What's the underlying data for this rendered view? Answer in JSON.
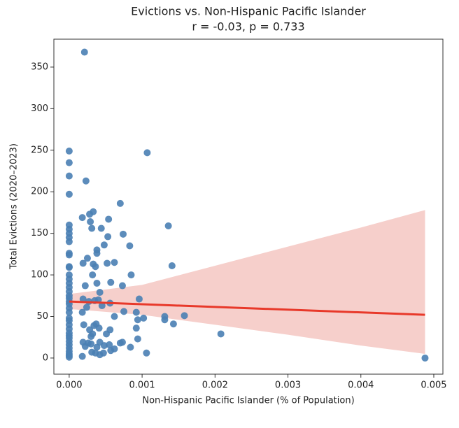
{
  "chart_data": {
    "type": "scatter",
    "title": "Evictions vs. Non-Hispanic Pacific Islander",
    "subtitle": "r = -0.03, p = 0.733",
    "x_label": "Non-Hispanic Pacific Islander (% of Population)",
    "y_label": "Total Evictions (2020–2023)",
    "xlim": [
      -0.00021,
      0.005125
    ],
    "ylim": [
      -19.4,
      383.6
    ],
    "xticks": [
      {
        "value": 0,
        "label": "0.000"
      },
      {
        "value": 0.001,
        "label": "0.001"
      },
      {
        "value": 0.002,
        "label": "0.002"
      },
      {
        "value": 0.003,
        "label": "0.003"
      },
      {
        "value": 0.004,
        "label": "0.004"
      },
      {
        "value": 0.005,
        "label": "0.005"
      }
    ],
    "yticks": [
      0,
      50,
      100,
      150,
      200,
      250,
      300,
      350
    ],
    "point_color": "#4a7fb4",
    "line_color": "#e8392a",
    "band_color": "#f6cfcb",
    "x": [
      0,
      0,
      0,
      0,
      0,
      0,
      0,
      0,
      0,
      0,
      0,
      0,
      0,
      0,
      0,
      0,
      0,
      0,
      0,
      0,
      0,
      0,
      0,
      0,
      0,
      0,
      0,
      0,
      0,
      0,
      0,
      0,
      0,
      0,
      0,
      0,
      0,
      0,
      0.00021,
      0.00023,
      0.00033,
      0.00028,
      0.00018,
      0.00054,
      0.00029,
      0.0007,
      0.00107,
      0.00136,
      0.00031,
      0.00044,
      0.00074,
      0.00053,
      0.00048,
      0.00083,
      0.00038,
      0.00038,
      0.00025,
      0.00019,
      0.00052,
      0.00062,
      0.00033,
      0.00036,
      0.00141,
      0.00032,
      0.00085,
      0.00022,
      0.00038,
      0.00057,
      0.00073,
      0.00042,
      0.00019,
      0.0004,
      0.00027,
      0.00035,
      0.00096,
      0.00056,
      0.00045,
      0.00024,
      0.00075,
      0.00018,
      0.00092,
      0.00062,
      0.00131,
      0.00158,
      0.00102,
      0.00094,
      0.00131,
      0.00143,
      0.0002,
      0.00037,
      0.00041,
      0.00034,
      0.00028,
      0.00056,
      0.00092,
      0.00208,
      0.00032,
      0.00051,
      0.0003,
      0.00094,
      0.00019,
      0.00026,
      0.00042,
      0.0007,
      0.00073,
      0.0003,
      0.00055,
      0.00048,
      0.00022,
      0.00038,
      0.00084,
      0.00062,
      0.00057,
      0.00031,
      0.00036,
      0.00047,
      0.00106,
      0.00042,
      0.00018,
      0.00488
    ],
    "values": [
      249,
      235,
      219,
      197,
      160,
      155,
      150,
      145,
      140,
      126,
      124,
      110,
      109,
      100,
      95,
      90,
      85,
      80,
      75,
      72,
      68,
      65,
      60,
      55,
      48,
      45,
      40,
      35,
      30,
      27,
      24,
      20,
      16,
      12,
      8,
      5,
      3,
      1,
      368,
      213,
      176,
      173,
      169,
      167,
      164,
      186,
      247,
      159,
      156,
      156,
      149,
      146,
      136,
      135,
      130,
      126,
      120,
      114,
      114,
      115,
      113,
      110,
      111,
      100,
      100,
      87,
      90,
      91,
      87,
      79,
      71,
      70,
      68,
      69,
      71,
      66,
      63,
      61,
      56,
      55,
      55,
      50,
      50,
      51,
      48,
      46,
      46,
      41,
      40,
      41,
      36,
      39,
      34,
      34,
      36,
      29,
      29,
      29,
      26,
      23,
      19,
      18,
      19,
      18,
      19,
      17,
      16,
      15,
      14,
      13,
      13,
      11,
      9,
      7,
      6,
      6,
      6,
      4,
      2,
      0
    ],
    "regression": {
      "x": [
        0,
        0.00488
      ],
      "y": [
        68,
        52
      ]
    },
    "band": {
      "x": [
        0,
        0.001,
        0.002,
        0.003,
        0.004,
        0.00488
      ],
      "upper": [
        77,
        88,
        111,
        134,
        157,
        178
      ],
      "lower": [
        59,
        52,
        40,
        28,
        15,
        5
      ]
    }
  }
}
